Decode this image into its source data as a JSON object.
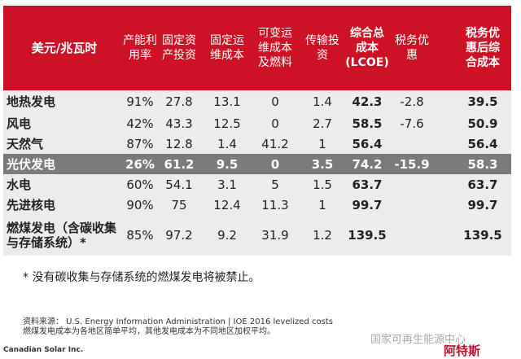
{
  "header": [
    "美元/兆瓦时",
    "产能利\n用率",
    "固定资\n产投资",
    "固定运\n维成本",
    "可变运\n维成本\n及燃料",
    "传输投\n资",
    "综合总\n成本\n(LCOE)",
    "税务优\n惠",
    "税务优\n惠后综\n合成本"
  ],
  "rows": [
    [
      "地热发电",
      "91%",
      "27.8",
      "13.1",
      "0",
      "1.4",
      "42.3",
      "-2.8",
      "39.5"
    ],
    [
      "风电",
      "42%",
      "43.3",
      "12.5",
      "0",
      "2.7",
      "58.5",
      "-7.6",
      "50.9"
    ],
    [
      "天然气",
      "87%",
      "12.8",
      "1.4",
      "41.2",
      "1",
      "56.4",
      "",
      "56.4"
    ],
    [
      "光伏发电",
      "26%",
      "61.2",
      "9.5",
      "0",
      "3.5",
      "74.2",
      "-15.9",
      "58.3"
    ],
    [
      "水电",
      "60%",
      "54.1",
      "3.1",
      "5",
      "1.5",
      "63.7",
      "",
      "63.7"
    ],
    [
      "先进核电",
      "90%",
      "75",
      "12.4",
      "11.3",
      "1",
      "99.7",
      "",
      "99.7"
    ],
    [
      "燃煤发电（含碳收集\n与存储系统）*",
      "85%",
      "97.2",
      "9.2",
      "31.9",
      "1.2",
      "139.5",
      "",
      "139.5"
    ]
  ],
  "highlight_row": "光伏发电",
  "colors": {
    "header": "#cd1226",
    "highlight": "#7b7a7d",
    "body": "#ecebee"
  },
  "footnote": "* 没有碳收集与存储系统的燃煤发电将被禁止。",
  "source_line1": "资料来源： U.S. Energy Information Administration | IOE 2016 levelized costs",
  "source_line2": "燃煤发电成本为各地区简单平均，其他发电成本为不同地区加权平均。",
  "company": "Canadian Solar Inc.",
  "watermark": "国家可再生能源中心",
  "logo_text": "阿特斯"
}
